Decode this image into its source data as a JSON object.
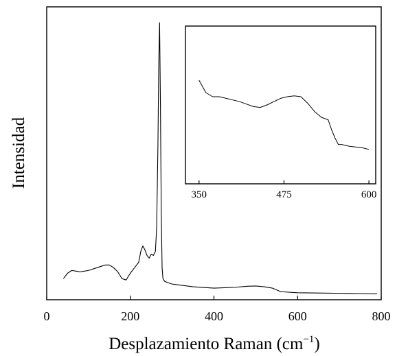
{
  "chart_data": [
    {
      "type": "line",
      "xlabel": "Desplazamiento Raman (cm",
      "xlabel_superscript": "−1",
      "xlabel_close": ")",
      "ylabel": "Intensidad",
      "xlim": [
        0,
        800
      ],
      "ylim": [
        0,
        1.0
      ],
      "y_tick_labels_shown": false,
      "x_ticks": [
        0,
        200,
        400,
        600,
        800
      ],
      "x_tick_labels": [
        "0",
        "200",
        "400",
        "600",
        "800"
      ],
      "line_color": "#000000",
      "series": [
        {
          "x": [
            40,
            50,
            60,
            80,
            100,
            120,
            140,
            150,
            160,
            170,
            180,
            190,
            200,
            210,
            220,
            225,
            230,
            235,
            240,
            245,
            250,
            255,
            260,
            263,
            266,
            268,
            270,
            272,
            274,
            276,
            278,
            282,
            290,
            300,
            350,
            400,
            450,
            480,
            500,
            520,
            540,
            560,
            600,
            650,
            700,
            750,
            790
          ],
          "y": [
            0.06,
            0.08,
            0.09,
            0.085,
            0.09,
            0.1,
            0.11,
            0.11,
            0.1,
            0.085,
            0.06,
            0.055,
            0.08,
            0.1,
            0.12,
            0.16,
            0.18,
            0.165,
            0.145,
            0.135,
            0.15,
            0.145,
            0.16,
            0.25,
            0.55,
            0.85,
            1.0,
            0.7,
            0.3,
            0.1,
            0.06,
            0.05,
            0.045,
            0.04,
            0.03,
            0.025,
            0.028,
            0.032,
            0.033,
            0.03,
            0.025,
            0.012,
            0.008,
            0.007,
            0.006,
            0.005,
            0.004
          ]
        }
      ]
    },
    {
      "type": "line",
      "xlabel": "",
      "ylabel": "",
      "xlim": [
        330,
        610
      ],
      "ylim": [
        0,
        1.0
      ],
      "x_ticks": [
        350,
        475,
        600
      ],
      "x_tick_labels": [
        "350",
        "475",
        "600"
      ],
      "line_color": "#000000",
      "series": [
        {
          "x": [
            350,
            360,
            370,
            380,
            390,
            400,
            410,
            420,
            430,
            440,
            450,
            460,
            470,
            480,
            490,
            500,
            510,
            520,
            530,
            540,
            545,
            550,
            555,
            560,
            570,
            580,
            590,
            600
          ],
          "y": [
            0.9,
            0.75,
            0.7,
            0.7,
            0.68,
            0.66,
            0.64,
            0.61,
            0.58,
            0.57,
            0.6,
            0.64,
            0.68,
            0.7,
            0.71,
            0.7,
            0.62,
            0.52,
            0.45,
            0.42,
            0.3,
            0.2,
            0.12,
            0.12,
            0.1,
            0.09,
            0.08,
            0.06
          ]
        }
      ]
    }
  ]
}
